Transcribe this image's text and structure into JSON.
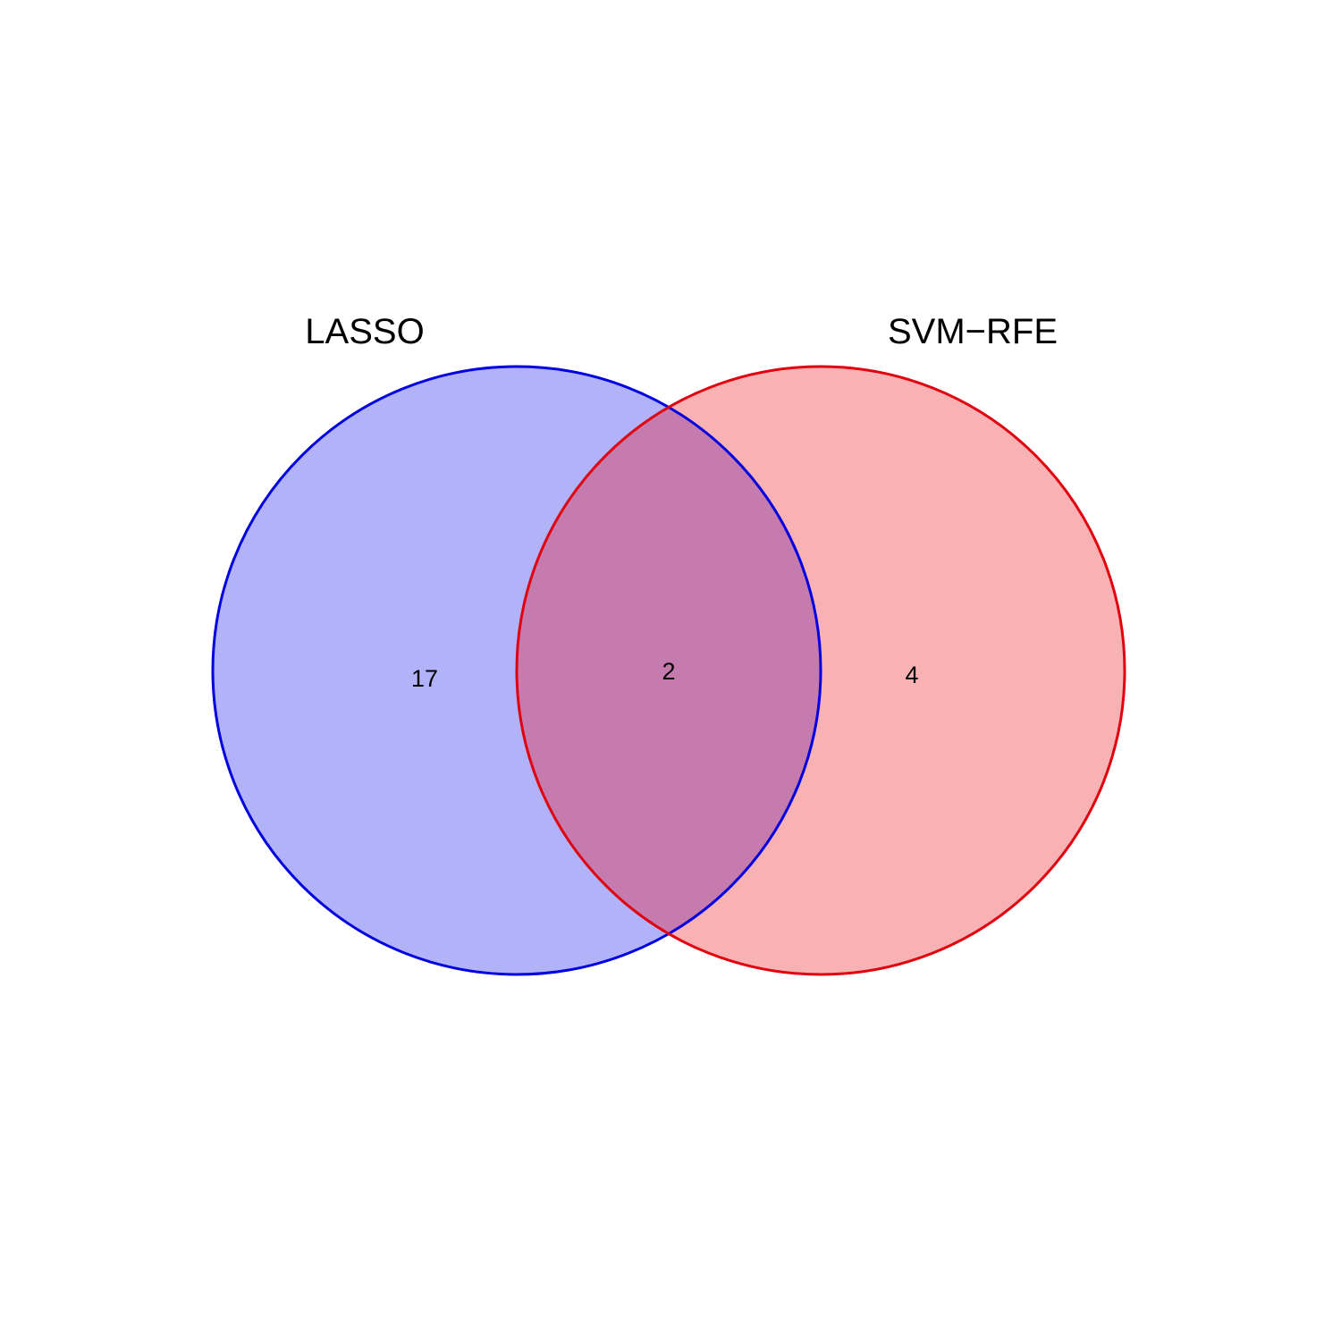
{
  "venn": {
    "sets": [
      {
        "name": "LASSO",
        "fill_color": "#b2b2f8",
        "stroke_color": "#0000e0"
      },
      {
        "name": "SVM−RFE",
        "fill_color": "#f9b2b4",
        "stroke_color": "#e0000e"
      }
    ],
    "overlap_color": "#c57bae",
    "regions": {
      "lasso_only": "17",
      "both": "2",
      "svm_rfe_only": "4"
    }
  }
}
